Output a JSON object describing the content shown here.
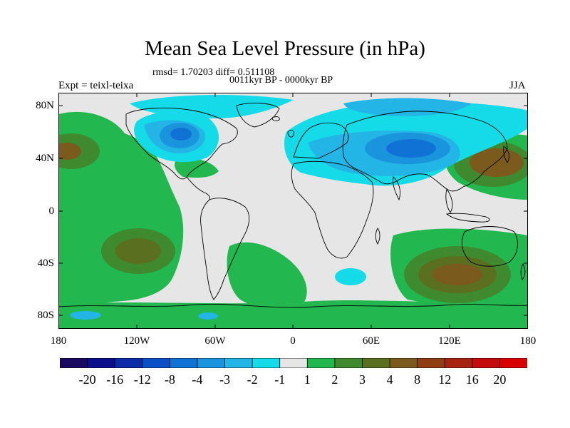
{
  "title": "Mean Sea Level Pressure (in hPa)",
  "stats": "rmsd= 1.70203 diff= 0.511108",
  "period": "0011kyr BP - 0000kyr BP",
  "experiment": "Expt = teixl-teixa",
  "season": "JJA",
  "y_axis_labels": [
    "80N",
    "40N",
    "0",
    "40S",
    "80S"
  ],
  "x_axis_labels": [
    "180",
    "120W",
    "60W",
    "0",
    "60E",
    "120E",
    "180"
  ],
  "colorbar": {
    "colors": [
      "#1a0a60",
      "#0c0f8c",
      "#0d2ca8",
      "#0b4fc6",
      "#1172d6",
      "#1a94dd",
      "#22b5e6",
      "#15dbe8",
      "#e6e6e6",
      "#22b84f",
      "#3f8a2f",
      "#5a6f1f",
      "#7b5a1d",
      "#8f3d12",
      "#a8230f",
      "#c40c0c",
      "#d90000"
    ],
    "labels": [
      "-20",
      "-16",
      "-12",
      "-8",
      "-4",
      "-3",
      "-2",
      "-1",
      "1",
      "2",
      "3",
      "4",
      "8",
      "12",
      "16",
      "20"
    ]
  },
  "palette": {
    "ocean_neutral": "#e6e6e6",
    "positive_1": "#22b84f",
    "positive_2": "#3f8a2f",
    "positive_3": "#5a6f1f",
    "positive_4": "#7b5a1d",
    "negative_1": "#15dbe8",
    "negative_2": "#22b5e6",
    "negative_3": "#1a94dd",
    "negative_4": "#1172d6",
    "negative_5": "#0b4fc6"
  }
}
